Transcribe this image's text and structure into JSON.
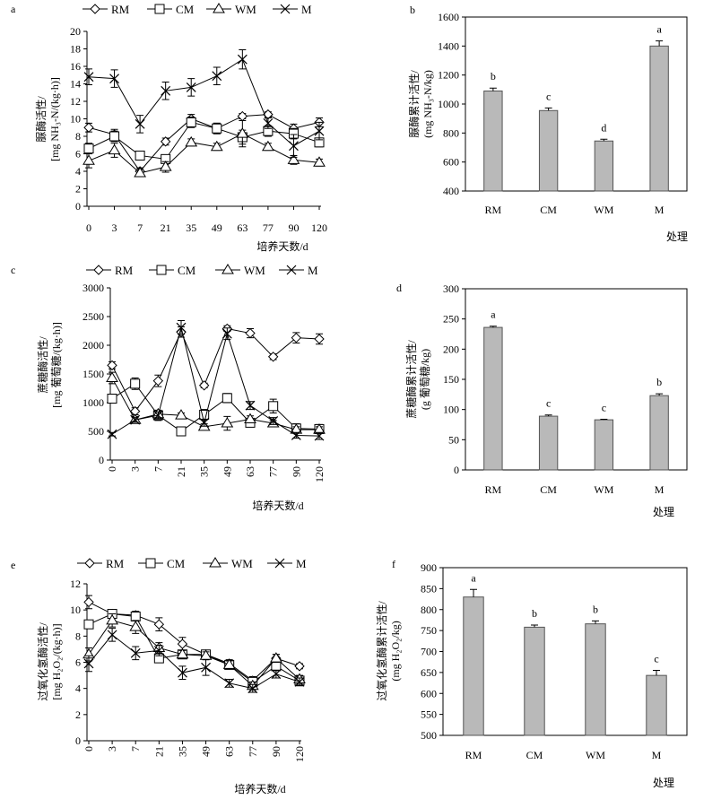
{
  "chart_data": [
    {
      "panel": "a",
      "type": "line",
      "ylabel": "脲酶活性/[mg NH₃-N/(kg·h)]",
      "xlabel": "培养天数/d",
      "x": [
        "0",
        "3",
        "7",
        "21",
        "35",
        "49",
        "63",
        "77",
        "90",
        "120"
      ],
      "ylim": [
        0,
        20
      ],
      "yticks": [
        0,
        2,
        4,
        6,
        8,
        10,
        12,
        14,
        16,
        18,
        20
      ],
      "legend_position": "top",
      "series": [
        {
          "name": "RM",
          "marker": "diamond",
          "values": [
            9.0,
            8.2,
            4.0,
            7.4,
            10.0,
            8.9,
            10.3,
            10.5,
            8.9,
            9.6
          ],
          "err": [
            0.5,
            0.6,
            0.4,
            0.4,
            0.5,
            0.6,
            0.3,
            0.3,
            0.5,
            0.5
          ]
        },
        {
          "name": "CM",
          "marker": "square",
          "values": [
            6.6,
            8.0,
            5.8,
            5.4,
            9.6,
            8.9,
            7.9,
            8.6,
            8.3,
            7.3
          ],
          "err": [
            0.6,
            0.6,
            0.4,
            0.4,
            0.6,
            0.6,
            0.8,
            0.6,
            0.6,
            0.5
          ]
        },
        {
          "name": "WM",
          "marker": "triangle",
          "values": [
            5.2,
            6.4,
            3.8,
            4.5,
            7.3,
            6.8,
            8.3,
            6.8,
            5.3,
            5.0
          ],
          "err": [
            0.8,
            0.8,
            0.4,
            0.6,
            0.4,
            0.4,
            1.5,
            0.4,
            0.5,
            0.4
          ]
        },
        {
          "name": "M",
          "marker": "x",
          "values": [
            14.8,
            14.6,
            9.4,
            13.2,
            13.6,
            14.9,
            16.8,
            9.5,
            6.9,
            8.6
          ],
          "err": [
            0.9,
            1.0,
            1.0,
            1.0,
            1.0,
            1.0,
            1.1,
            0.6,
            1.3,
            1.0
          ]
        }
      ]
    },
    {
      "panel": "b",
      "type": "bar",
      "ylabel": "脲酶累计活性/(mg NH₃-N/kg)",
      "xlabel": "处理",
      "categories": [
        "RM",
        "CM",
        "WM",
        "M"
      ],
      "values": [
        1090,
        955,
        745,
        1400
      ],
      "err": [
        20,
        18,
        12,
        35
      ],
      "letters": [
        "b",
        "c",
        "d",
        "a"
      ],
      "ylim": [
        400,
        1600
      ],
      "yticks": [
        400,
        600,
        800,
        1000,
        1200,
        1400,
        1600
      ]
    },
    {
      "panel": "c",
      "type": "line",
      "ylabel": "蔗糖酶活性/[mg 葡萄糖/(kg·h)]",
      "xlabel": "培养天数/d",
      "x": [
        "0",
        "3",
        "7",
        "21",
        "35",
        "49",
        "63",
        "77",
        "90",
        "120"
      ],
      "ylim": [
        0,
        3000
      ],
      "yticks": [
        0,
        500,
        1000,
        1500,
        2000,
        2500,
        3000
      ],
      "legend_position": "top",
      "series": [
        {
          "name": "RM",
          "marker": "diamond",
          "values": [
            1650,
            850,
            1380,
            2230,
            1300,
            2290,
            2210,
            1800,
            2130,
            2110
          ],
          "err": [
            60,
            60,
            100,
            90,
            40,
            50,
            80,
            50,
            90,
            90
          ]
        },
        {
          "name": "CM",
          "marker": "square",
          "values": [
            1070,
            1330,
            780,
            500,
            790,
            1080,
            650,
            940,
            550,
            540
          ],
          "err": [
            60,
            100,
            90,
            70,
            90,
            80,
            60,
            120,
            80,
            80
          ]
        },
        {
          "name": "WM",
          "marker": "triangle",
          "values": [
            1430,
            700,
            800,
            780,
            580,
            640,
            710,
            640,
            530,
            530
          ],
          "err": [
            100,
            60,
            60,
            40,
            50,
            120,
            60,
            50,
            50,
            50
          ]
        },
        {
          "name": "M",
          "marker": "x",
          "values": [
            450,
            700,
            780,
            2310,
            650,
            2200,
            950,
            680,
            430,
            420
          ],
          "err": [
            30,
            40,
            60,
            120,
            60,
            100,
            70,
            60,
            50,
            60
          ]
        }
      ]
    },
    {
      "panel": "d",
      "type": "bar",
      "ylabel": "蔗糖酶累计活性/(g 葡萄糖/kg)",
      "xlabel": "处理",
      "categories": [
        "RM",
        "CM",
        "WM",
        "M"
      ],
      "values": [
        236,
        89,
        83,
        123
      ],
      "err": [
        2,
        2,
        1,
        3
      ],
      "letters": [
        "a",
        "c",
        "c",
        "b"
      ],
      "ylim": [
        0,
        300
      ],
      "yticks": [
        0,
        50,
        100,
        150,
        200,
        250,
        300
      ]
    },
    {
      "panel": "e",
      "type": "line",
      "ylabel": "过氧化氢酶活性/[mg H₂O₂/(kg·h)]",
      "xlabel": "培养天数/d",
      "x": [
        "0",
        "3",
        "7",
        "21",
        "35",
        "49",
        "63",
        "77",
        "90",
        "120"
      ],
      "ylim": [
        0,
        12
      ],
      "yticks": [
        0,
        2,
        4,
        6,
        8,
        10,
        12
      ],
      "legend_position": "top",
      "series": [
        {
          "name": "RM",
          "marker": "diamond",
          "values": [
            10.6,
            9.7,
            9.6,
            8.9,
            7.4,
            6.6,
            5.9,
            4.6,
            6.3,
            5.7
          ],
          "err": [
            0.5,
            0.3,
            0.3,
            0.5,
            0.5,
            0.3,
            0.3,
            0.3,
            0.3,
            0.2
          ]
        },
        {
          "name": "CM",
          "marker": "square",
          "values": [
            8.9,
            9.7,
            9.5,
            6.3,
            6.6,
            6.6,
            5.8,
            4.5,
            5.7,
            4.6
          ],
          "err": [
            0.3,
            0.3,
            0.3,
            0.3,
            0.3,
            0.3,
            0.3,
            0.3,
            0.3,
            0.3
          ]
        },
        {
          "name": "WM",
          "marker": "triangle",
          "values": [
            6.6,
            9.2,
            8.7,
            7.1,
            6.6,
            6.5,
            5.8,
            4.2,
            6.3,
            4.7
          ],
          "err": [
            0.5,
            0.5,
            0.5,
            0.4,
            0.3,
            0.3,
            0.3,
            0.3,
            0.3,
            0.3
          ]
        },
        {
          "name": "M",
          "marker": "x",
          "values": [
            5.9,
            8.1,
            6.7,
            6.9,
            5.2,
            5.6,
            4.4,
            4.0,
            5.1,
            4.5
          ],
          "err": [
            0.6,
            0.5,
            0.5,
            0.4,
            0.5,
            0.6,
            0.3,
            0.3,
            0.3,
            0.3
          ]
        }
      ]
    },
    {
      "panel": "f",
      "type": "bar",
      "ylabel": "过氧化氢酶累计活性/(mg H₂O₂/kg)",
      "xlabel": "处理",
      "categories": [
        "RM",
        "CM",
        "WM",
        "M"
      ],
      "values": [
        830,
        758,
        766,
        643
      ],
      "err": [
        18,
        5,
        7,
        12
      ],
      "letters": [
        "a",
        "b",
        "b",
        "c"
      ],
      "ylim": [
        500,
        900
      ],
      "yticks": [
        500,
        550,
        600,
        650,
        700,
        750,
        800,
        850,
        900
      ]
    }
  ]
}
